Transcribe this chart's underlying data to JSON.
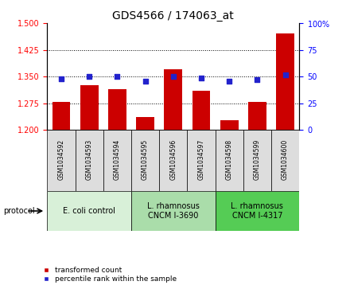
{
  "title": "GDS4566 / 174063_at",
  "samples": [
    "GSM1034592",
    "GSM1034593",
    "GSM1034594",
    "GSM1034595",
    "GSM1034596",
    "GSM1034597",
    "GSM1034598",
    "GSM1034599",
    "GSM1034600"
  ],
  "transformed_counts": [
    1.28,
    1.325,
    1.315,
    1.237,
    1.37,
    1.31,
    1.228,
    1.278,
    1.47
  ],
  "percentile_ranks": [
    48,
    50,
    50,
    46,
    50,
    49,
    46,
    47,
    52
  ],
  "ylim_left": [
    1.2,
    1.5
  ],
  "ylim_right": [
    0,
    100
  ],
  "yticks_left": [
    1.2,
    1.275,
    1.35,
    1.425,
    1.5
  ],
  "yticks_right": [
    0,
    25,
    50,
    75,
    100
  ],
  "bar_color": "#cc0000",
  "dot_color": "#2222cc",
  "grid_yticks": [
    1.275,
    1.35,
    1.425
  ],
  "protocols": [
    {
      "label": "E. coli control",
      "start": 0,
      "end": 3,
      "color": "#d8f0d8"
    },
    {
      "label": "L. rhamnosus\nCNCM I-3690",
      "start": 3,
      "end": 6,
      "color": "#aaddaa"
    },
    {
      "label": "L. rhamnosus\nCNCM I-4317",
      "start": 6,
      "end": 9,
      "color": "#55cc55"
    }
  ],
  "legend_bar_label": "transformed count",
  "legend_dot_label": "percentile rank within the sample",
  "protocol_label": "protocol",
  "bar_bottom": 1.2,
  "dot_size": 25,
  "sample_box_color": "#dddddd",
  "title_fontsize": 10,
  "tick_fontsize": 7,
  "sample_fontsize": 5.5,
  "proto_fontsize": 7,
  "legend_fontsize": 6.5
}
